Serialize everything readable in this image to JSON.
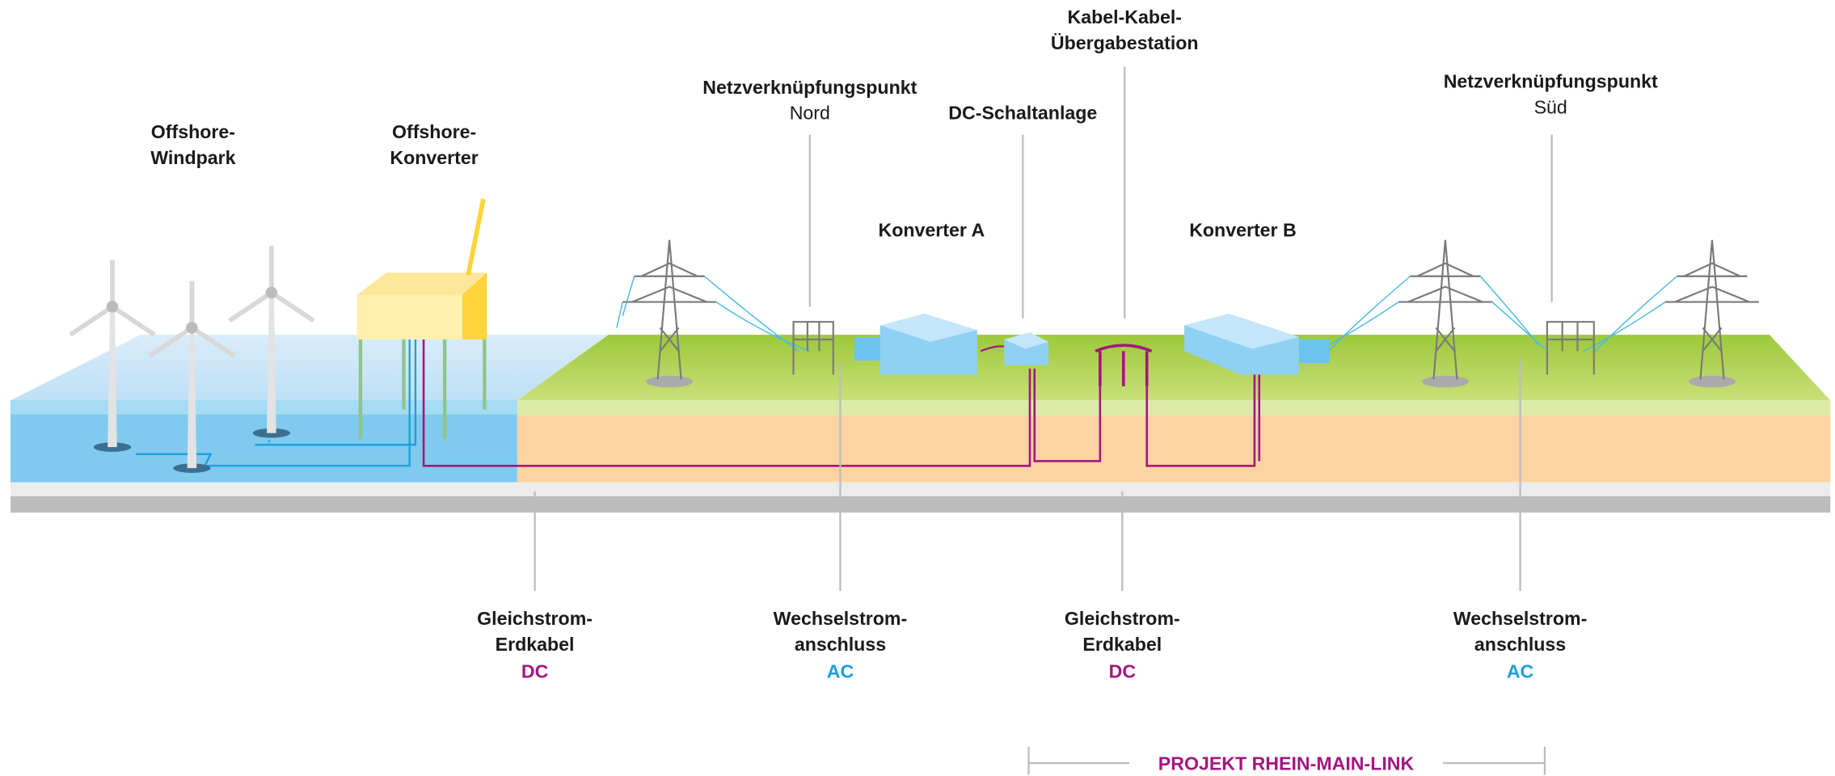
{
  "top_labels": [
    {
      "lines": [
        "Offshore-",
        "Windpark"
      ]
    },
    {
      "lines": [
        "Offshore-",
        "Konverter"
      ]
    },
    {
      "lines": [
        "Netzverknüpfungspunkt"
      ],
      "sub": "Nord"
    },
    {
      "lines": [
        "DC-Schaltanlage"
      ]
    },
    {
      "lines": [
        "Kabel-Kabel-",
        "Übergabestation"
      ]
    },
    {
      "lines": [
        "Netzverknüpfungspunkt"
      ],
      "sub": "Süd"
    },
    {
      "lines": [
        "Konverter A"
      ]
    },
    {
      "lines": [
        "Konverter B"
      ]
    }
  ],
  "bottom_labels": [
    {
      "lines": [
        "Gleichstrom-",
        "Erdkabel"
      ],
      "kind": "DC"
    },
    {
      "lines": [
        "Wechselstrom-",
        "anschluss"
      ],
      "kind": "AC"
    },
    {
      "lines": [
        "Gleichstrom-",
        "Erdkabel"
      ],
      "kind": "DC"
    },
    {
      "lines": [
        "Wechselstrom-",
        "anschluss"
      ],
      "kind": "AC"
    }
  ],
  "project": "PROJEKT RHEIN-MAIN-LINK"
}
